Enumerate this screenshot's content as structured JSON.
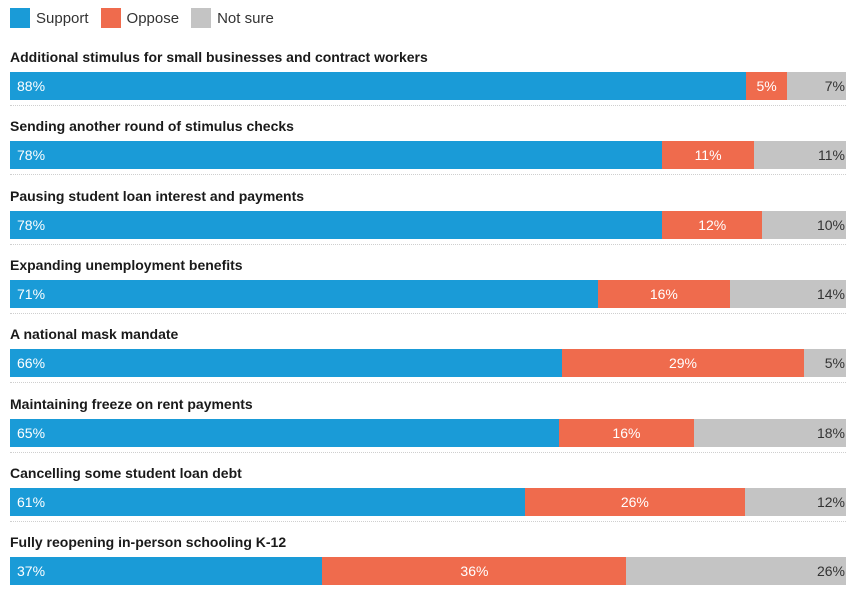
{
  "colors": {
    "support": "#1a9bd7",
    "oppose": "#ef6b4d",
    "notsure": "#c4c4c4"
  },
  "legend": {
    "support_label": "Support",
    "oppose_label": "Oppose",
    "notsure_label": "Not sure"
  },
  "chart_data": {
    "type": "bar",
    "orientation": "horizontal",
    "stacked": true,
    "legend_position": "top-left",
    "xlim": [
      0,
      100
    ],
    "series": [
      {
        "name": "Support",
        "values": [
          88,
          78,
          78,
          71,
          66,
          65,
          61,
          37
        ]
      },
      {
        "name": "Oppose",
        "values": [
          5,
          11,
          12,
          16,
          29,
          16,
          26,
          36
        ]
      },
      {
        "name": "Not sure",
        "values": [
          7,
          11,
          10,
          14,
          5,
          18,
          12,
          26
        ]
      }
    ],
    "categories": [
      "Additional stimulus for small businesses and contract workers",
      "Sending another round of stimulus checks",
      "Pausing student loan interest and payments",
      "Expanding unemployment benefits",
      "A national mask mandate",
      "Maintaining freeze on rent payments",
      "Cancelling some student loan debt",
      "Fully reopening in-person schooling K-12"
    ]
  }
}
